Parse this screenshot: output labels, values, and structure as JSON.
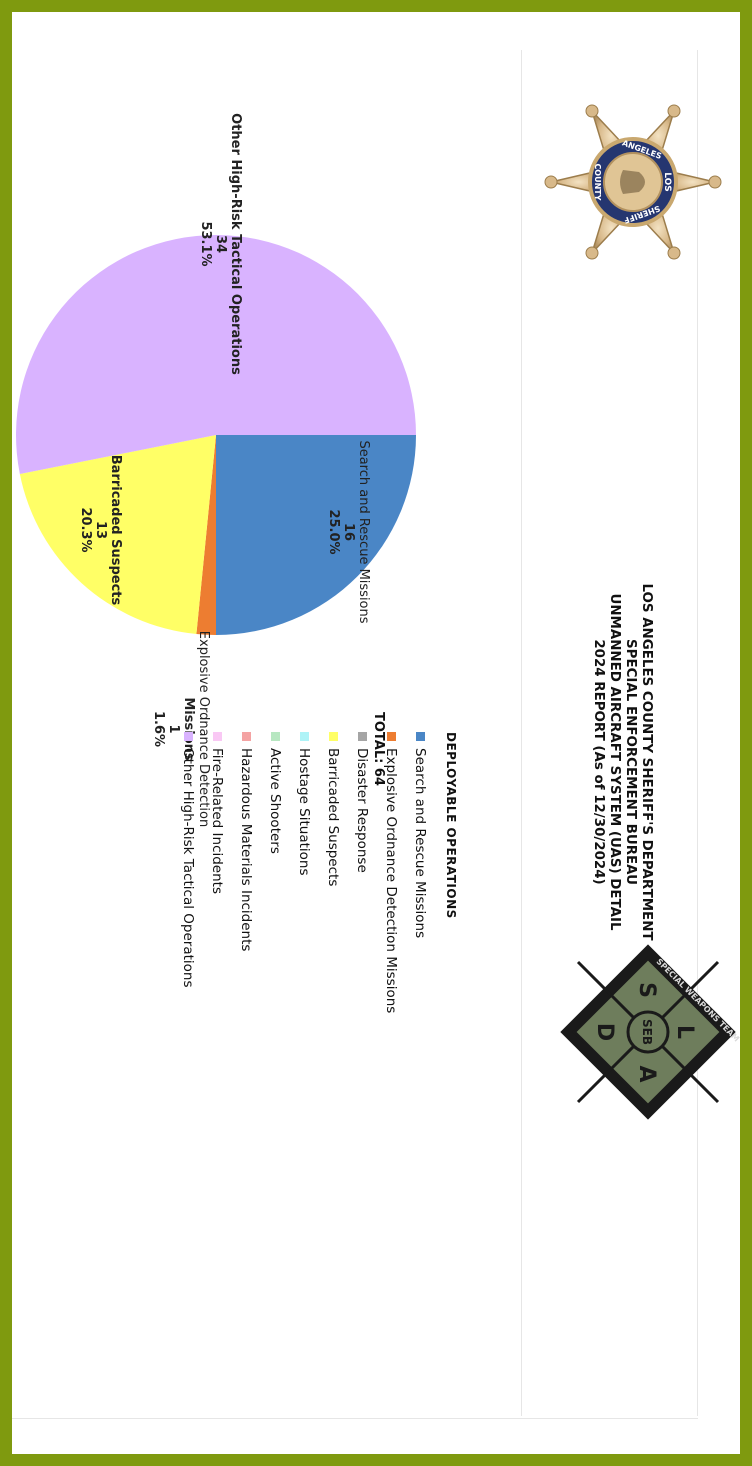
{
  "header": {
    "lines": [
      "LOS ANGELES COUNTY SHERIFF'S DEPARTMENT",
      "SPECIAL ENFORCEMENT BUREAU",
      "UNMANNED AIRCRAFT SYSTEM (UAS) DETAIL",
      "2024 REPORT (As of 12/30/2024)"
    ]
  },
  "total_label": "TOTAL: 64",
  "legend": {
    "title": "DEPLOYABLE OPERATIONS",
    "items": [
      {
        "label": "Search and Rescue Missions",
        "color": "#4a86c6"
      },
      {
        "label": "Explosive Ordnance Detection Missions",
        "color": "#ed7d31"
      },
      {
        "label": "Disaster Response",
        "color": "#a5a5a5"
      },
      {
        "label": "Barricaded Suspects",
        "color": "#ffff66"
      },
      {
        "label": "Hostage Situations",
        "color": "#aef3f7"
      },
      {
        "label": "Active Shooters",
        "color": "#b7e7c1"
      },
      {
        "label": "Hazardous Materials Incidents",
        "color": "#f4a3a3"
      },
      {
        "label": "Fire-Related Incidents",
        "color": "#f9c8f4"
      },
      {
        "label": "Other High-Risk Tactical Operations",
        "color": "#d9b3ff"
      }
    ]
  },
  "badges": {
    "sheriff": {
      "lines": [
        "LOS",
        "ANGELES",
        "SHERIFF",
        "COUNTY"
      ]
    },
    "seb": {
      "ring_text": "SPECIAL WEAPONS TEAM",
      "letters": [
        "L",
        "A",
        "S",
        "D"
      ],
      "center": "SEB"
    }
  },
  "chart_data": {
    "type": "pie",
    "total": 64,
    "slices": [
      {
        "name": "Search and Rescue Missions",
        "value": 16,
        "percent": "25.0%",
        "color": "#4a86c6"
      },
      {
        "name": "Explosive Ordnance Detection Missions",
        "value": 1,
        "percent": "1.6%",
        "color": "#ed7d31"
      },
      {
        "name": "Barricaded Suspects",
        "value": 13,
        "percent": "20.3%",
        "color": "#ffff66"
      },
      {
        "name": "Other High-Risk Tactical Operations",
        "value": 34,
        "percent": "53.1%",
        "color": "#d9b3ff"
      }
    ],
    "data_labels": [
      {
        "lines": [
          "Search and Rescue Missions",
          "16",
          "25.0%"
        ]
      },
      {
        "lines": [
          "Explosive Ordnance Detection",
          "Missions",
          "1",
          "1.6%"
        ]
      },
      {
        "lines": [
          "Barricaded Suspects",
          "13",
          "20.3%"
        ]
      },
      {
        "lines": [
          "Other High-Risk Tactical Operations",
          "34",
          "53.1%"
        ]
      }
    ],
    "legend_placement": "bottom"
  }
}
